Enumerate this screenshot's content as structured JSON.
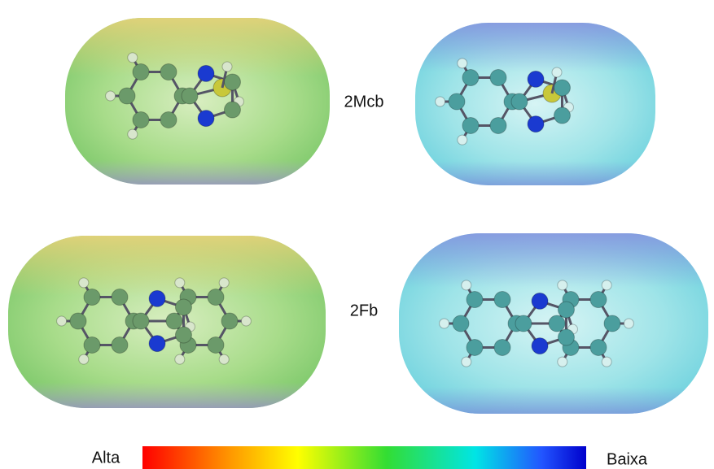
{
  "labels": {
    "row1": "2Mcb",
    "row2": "2Fb"
  },
  "legend": {
    "high": "Alta",
    "low": "Baixa"
  }
}
